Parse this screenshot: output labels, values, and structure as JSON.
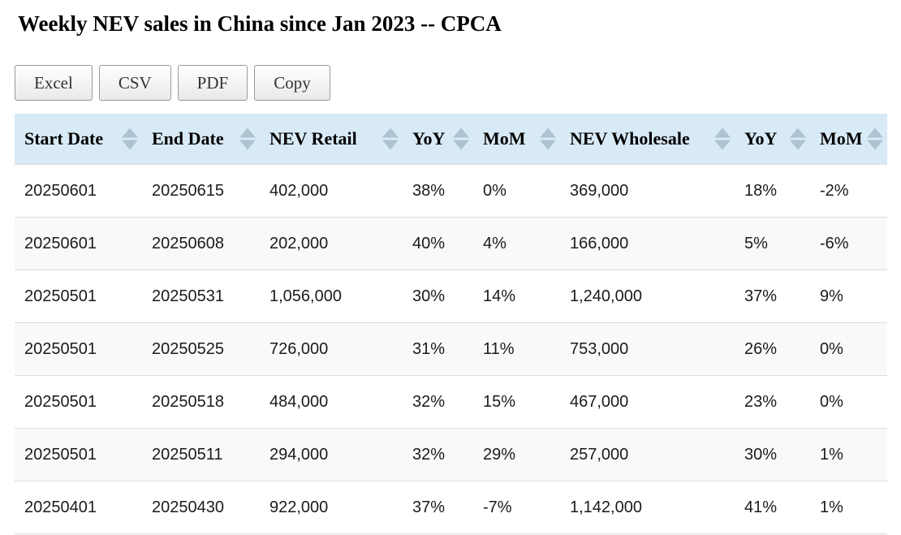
{
  "page": {
    "title": "Weekly NEV sales in China since Jan 2023 -- CPCA"
  },
  "toolbar": {
    "buttons": [
      {
        "key": "excel",
        "label": "Excel"
      },
      {
        "key": "csv",
        "label": "CSV"
      },
      {
        "key": "pdf",
        "label": "PDF"
      },
      {
        "key": "copy",
        "label": "Copy"
      }
    ]
  },
  "table": {
    "columns": [
      {
        "key": "start-date",
        "label": "Start Date",
        "sortable": true
      },
      {
        "key": "end-date",
        "label": "End Date",
        "sortable": true
      },
      {
        "key": "nev-retail",
        "label": "NEV Retail",
        "sortable": true
      },
      {
        "key": "retail-yoy",
        "label": "YoY",
        "sortable": true
      },
      {
        "key": "retail-mom",
        "label": "MoM",
        "sortable": true
      },
      {
        "key": "nev-wholesale",
        "label": "NEV Wholesale",
        "sortable": true
      },
      {
        "key": "wholesale-yoy",
        "label": "YoY",
        "sortable": true
      },
      {
        "key": "wholesale-mom",
        "label": "MoM",
        "sortable": true
      }
    ],
    "rows": [
      [
        "20250601",
        "20250615",
        "402,000",
        "38%",
        "0%",
        "369,000",
        "18%",
        "-2%"
      ],
      [
        "20250601",
        "20250608",
        "202,000",
        "40%",
        "4%",
        "166,000",
        "5%",
        "-6%"
      ],
      [
        "20250501",
        "20250531",
        "1,056,000",
        "30%",
        "14%",
        "1,240,000",
        "37%",
        "9%"
      ],
      [
        "20250501",
        "20250525",
        "726,000",
        "31%",
        "11%",
        "753,000",
        "26%",
        "0%"
      ],
      [
        "20250501",
        "20250518",
        "484,000",
        "32%",
        "15%",
        "467,000",
        "23%",
        "0%"
      ],
      [
        "20250501",
        "20250511",
        "294,000",
        "32%",
        "29%",
        "257,000",
        "30%",
        "1%"
      ],
      [
        "20250401",
        "20250430",
        "922,000",
        "37%",
        "-7%",
        "1,142,000",
        "41%",
        "1%"
      ]
    ],
    "next_row_partially_visible": true
  },
  "colors": {
    "header_bg": "#d9eaf7",
    "sort_arrow": "#aec2d2",
    "row_alt_bg": "#f9f9f9",
    "row_border": "#dcdcdc",
    "body_text": "#1b1b1b"
  }
}
